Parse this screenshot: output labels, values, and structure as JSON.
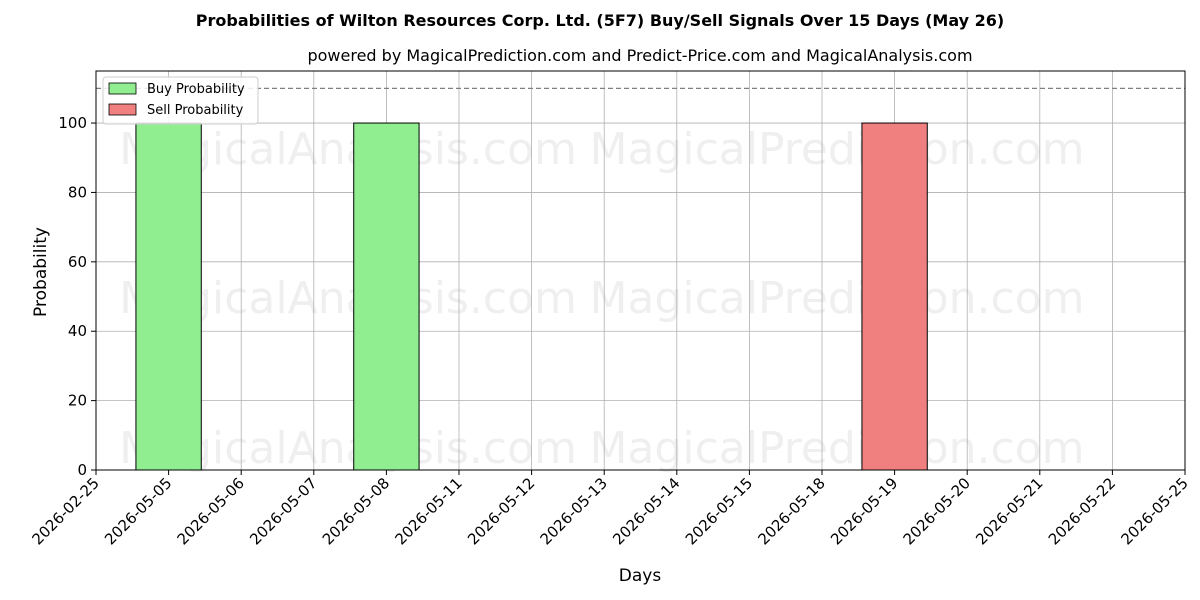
{
  "chart_data": {
    "type": "bar",
    "title": "Probabilities of Wilton Resources Corp. Ltd. (5F7) Buy/Sell Signals Over 15 Days (May 26)",
    "subtitle": "powered by MagicalPrediction.com and Predict-Price.com and MagicalAnalysis.com",
    "xlabel": "Days",
    "ylabel": "Probability",
    "ylim": [
      0,
      115
    ],
    "yticks": [
      0,
      20,
      40,
      60,
      80,
      100
    ],
    "reference_line": 110,
    "categories": [
      "2026-02-25",
      "2026-05-05",
      "2026-05-06",
      "2026-05-07",
      "2026-05-08",
      "2026-05-11",
      "2026-05-12",
      "2026-05-13",
      "2026-05-14",
      "2026-05-15",
      "2026-05-18",
      "2026-05-19",
      "2026-05-20",
      "2026-05-21",
      "2026-05-22",
      "2026-05-25"
    ],
    "series": [
      {
        "name": "Buy Probability",
        "color": "#90ee90",
        "values": [
          0,
          100,
          0,
          0,
          100,
          0,
          0,
          0,
          0,
          0,
          0,
          0,
          0,
          0,
          0,
          0
        ]
      },
      {
        "name": "Sell Probability",
        "color": "#f08080",
        "values": [
          0,
          0,
          0,
          0,
          0,
          0,
          0,
          0,
          0,
          0,
          0,
          100,
          0,
          0,
          0,
          0
        ]
      }
    ],
    "grid": true,
    "legend_position": "top-left",
    "watermarks": [
      "MagicalAnalysis.com",
      "MagicalPrediction.com"
    ]
  }
}
